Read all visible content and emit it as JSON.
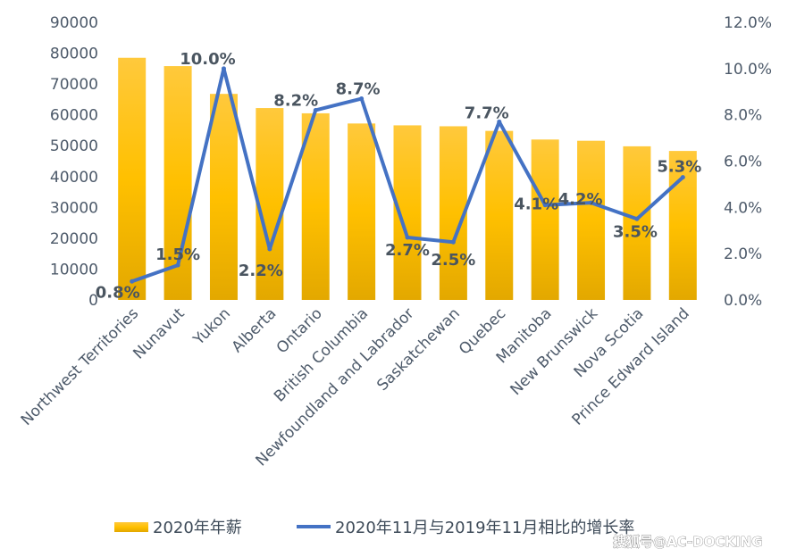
{
  "chart_data": {
    "type": "bar",
    "categories": [
      "Northwest Territories",
      "Nunavut",
      "Yukon",
      "Alberta",
      "Ontario",
      "British Columbia",
      "Newfoundland and Labrador",
      "Saskatchewan",
      "Quebec",
      "Manitoba",
      "New Brunswick",
      "Nova Scotia",
      "Prince Edward Island"
    ],
    "series": [
      {
        "name": "2020年年薪",
        "type": "bar",
        "axis": "left",
        "values": [
          78500,
          75800,
          66800,
          62200,
          60500,
          57200,
          56600,
          56300,
          54800,
          52000,
          51600,
          49800,
          48300
        ]
      },
      {
        "name": "2020年11月与2019年11月相比的增长率",
        "type": "line",
        "axis": "right",
        "values": [
          0.8,
          1.5,
          10.0,
          2.2,
          8.2,
          8.7,
          2.7,
          2.5,
          7.7,
          4.1,
          4.2,
          3.5,
          5.3
        ],
        "labels": [
          "0.8%",
          "1.5%",
          "10.0%",
          "2.2%",
          "8.2%",
          "8.7%",
          "2.7%",
          "2.5%",
          "7.7%",
          "4.1%",
          "4.2%",
          "3.5%",
          "5.3%"
        ]
      }
    ],
    "y_left": {
      "ylim": [
        0,
        90000
      ],
      "ticks": [
        "0",
        "10000",
        "20000",
        "30000",
        "40000",
        "50000",
        "60000",
        "70000",
        "80000",
        "90000"
      ]
    },
    "y_right": {
      "ylim": [
        0,
        12
      ],
      "ticks": [
        "0.0%",
        "2.0%",
        "4.0%",
        "6.0%",
        "8.0%",
        "10.0%",
        "12.0%"
      ]
    },
    "legend_position": "bottom",
    "grid": false,
    "colors": {
      "bar": "#ffc000",
      "bar_dark": "#e6ac00",
      "line": "#4472c4"
    }
  },
  "watermark": "搜狐号@AC-DOCKING"
}
